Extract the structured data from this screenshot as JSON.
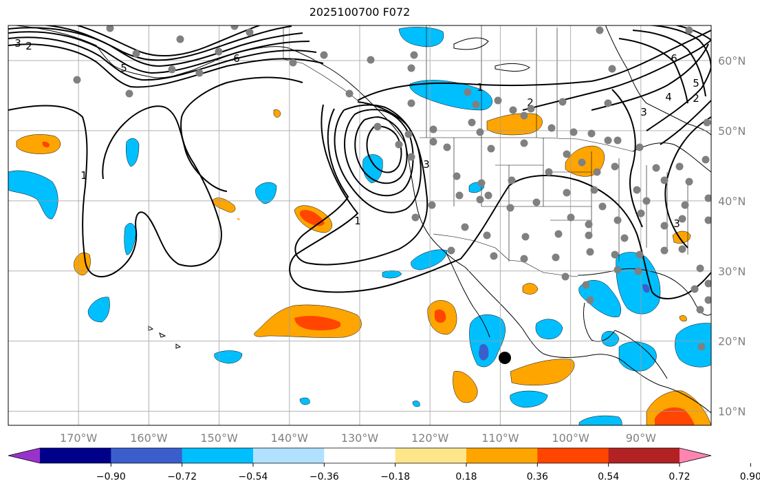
{
  "title": "2025100700 F072",
  "map": {
    "lat_labels": [
      "60°N",
      "50°N",
      "40°N",
      "30°N",
      "20°N",
      "10°N"
    ],
    "lon_labels": [
      "170°W",
      "160°W",
      "150°W",
      "140°W",
      "130°W",
      "120°W",
      "110°W",
      "100°W",
      "90°W"
    ],
    "lat_range": [
      8,
      65
    ],
    "lon_range": [
      -180,
      -80
    ],
    "grid": true,
    "contour_color": "#000000",
    "contour_labels": [
      "1",
      "2",
      "3",
      "4",
      "5",
      "6",
      "1",
      "2",
      "3",
      "5",
      "6",
      "1",
      "3",
      "2",
      "3"
    ],
    "observation_point_color": "#808080",
    "marker_color": "#000000"
  },
  "colorbar": {
    "ticks": [
      "−0.90",
      "−0.72",
      "−0.54",
      "−0.36",
      "−0.18",
      "0.18",
      "0.36",
      "0.54",
      "0.72",
      "0.90"
    ],
    "colors": [
      "#9932cc",
      "#00008b",
      "#3a5fcd",
      "#00bfff",
      "#b0e2ff",
      "#ffffff",
      "#fde68a",
      "#ffa500",
      "#ff4500",
      "#b22222",
      "#ff85b0"
    ]
  }
}
